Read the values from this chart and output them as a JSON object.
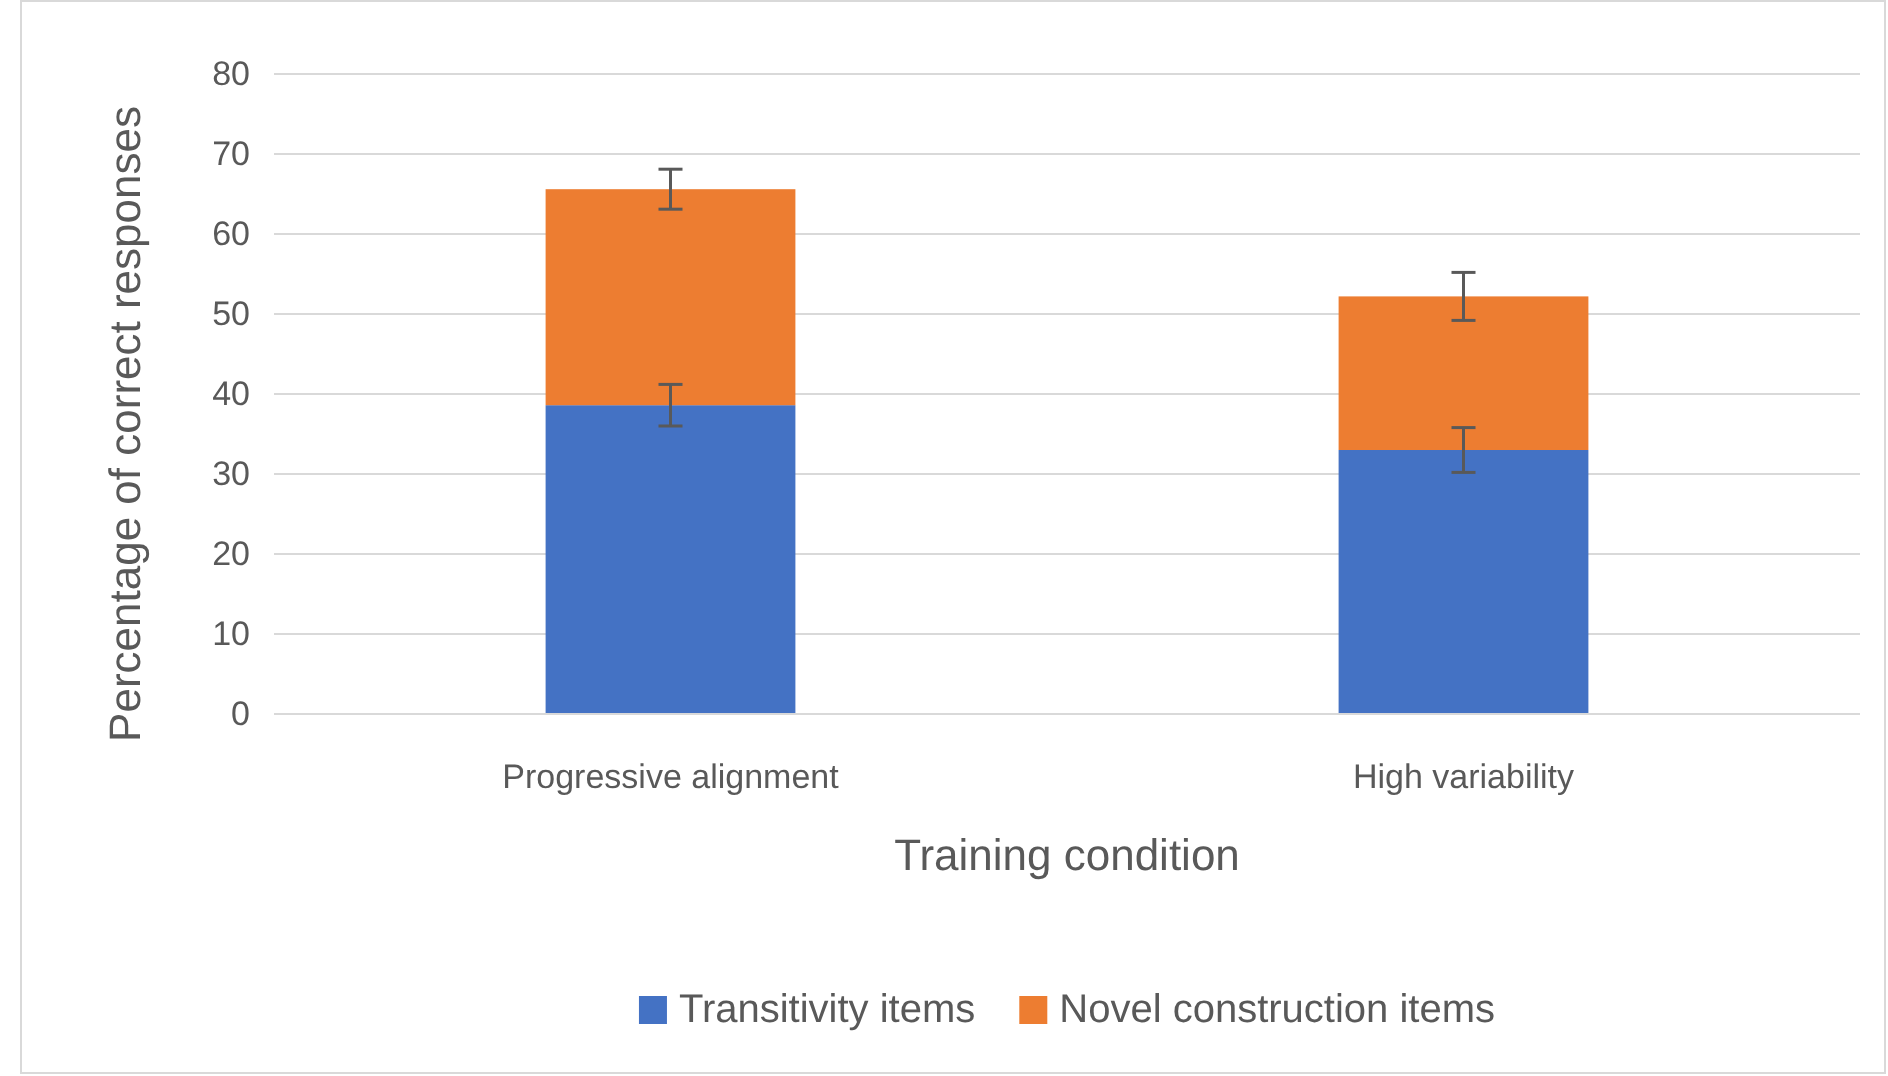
{
  "chart_data": {
    "type": "bar",
    "stacked": true,
    "xlabel": "Training condition",
    "ylabel": "Percentage of correct responses",
    "categories": [
      "Progressive alignment",
      "High variability"
    ],
    "series": [
      {
        "name": "Transitivity items",
        "color": "#4472c4",
        "values": [
          38.6,
          33
        ],
        "errors": [
          2.6,
          2.8
        ]
      },
      {
        "name": "Novel construction items",
        "color": "#ed7d31",
        "values": [
          27,
          19.2
        ],
        "errors": [
          2.5,
          3
        ]
      }
    ],
    "ylim": [
      0,
      80
    ],
    "yticks": [
      0,
      10,
      20,
      30,
      40,
      50,
      60,
      70,
      80
    ],
    "grid": "y",
    "legend": "bottom"
  }
}
